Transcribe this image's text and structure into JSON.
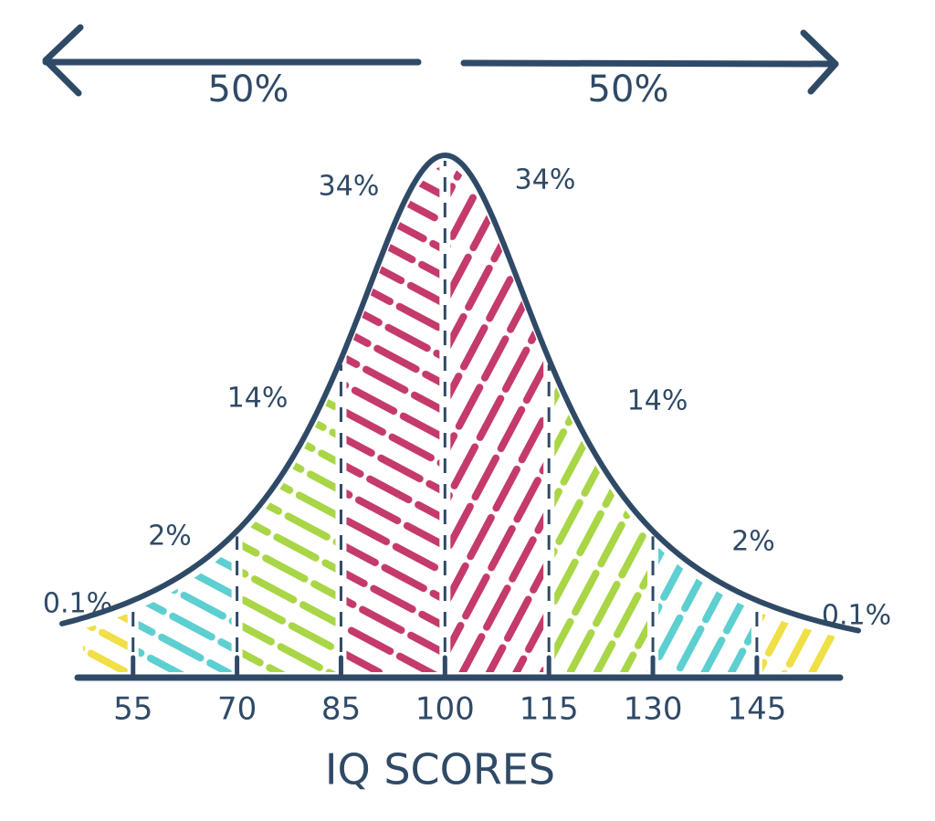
{
  "chart_data": {
    "type": "distribution",
    "xlabel": "IQ SCORES",
    "xlim": [
      47,
      157
    ],
    "xticks": [
      55,
      70,
      85,
      100,
      115,
      130,
      145
    ],
    "regions": {
      "values": [
        0.1,
        2,
        14,
        34,
        34,
        14,
        2,
        0.1
      ],
      "value_labels": [
        "0.1%",
        "2%",
        "14%",
        "34%",
        "34%",
        "14%",
        "2%",
        "0.1%"
      ],
      "colors": [
        "#f0df45",
        "#5ecfd0",
        "#a9d646",
        "#c43a6c",
        "#c43a6c",
        "#a9d646",
        "#5ecfd0",
        "#f0df45"
      ]
    },
    "halves": {
      "values": [
        50,
        50
      ],
      "value_labels": [
        "50%",
        "50%"
      ]
    },
    "color": "#2f4a66"
  }
}
